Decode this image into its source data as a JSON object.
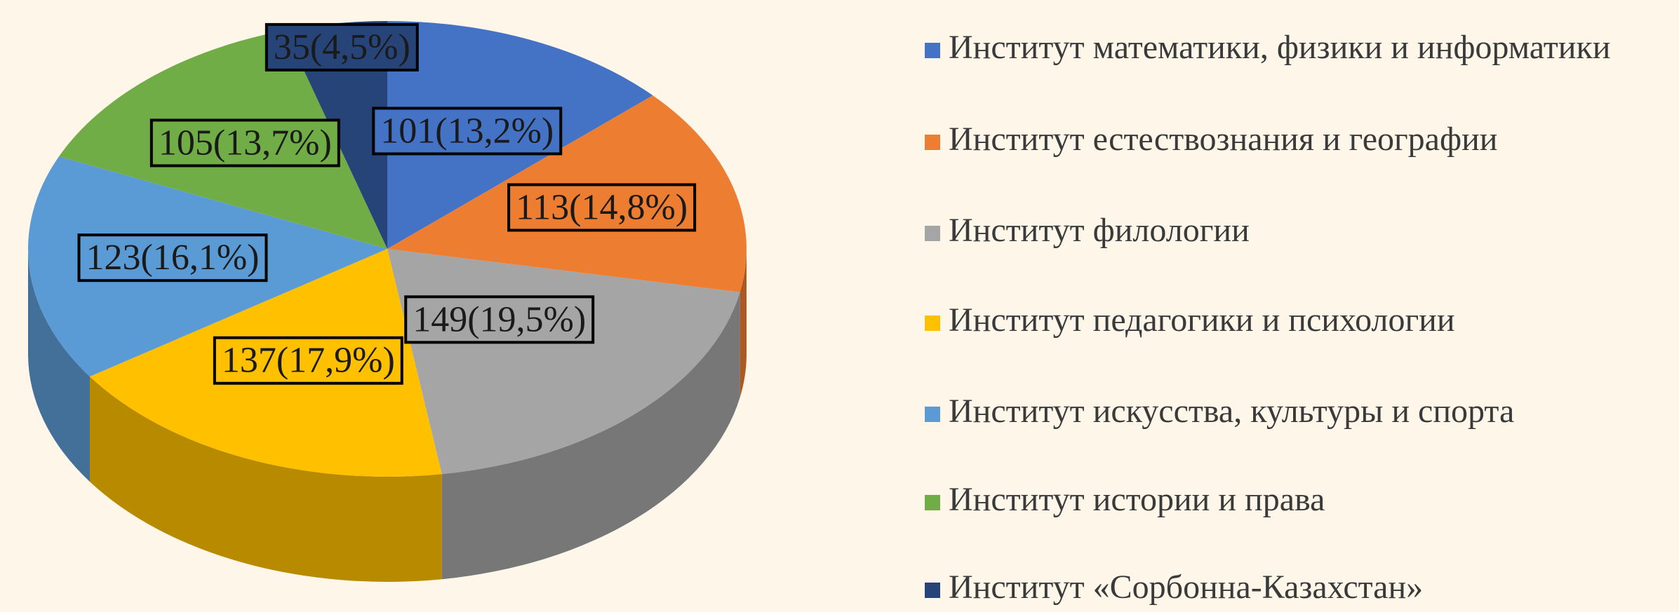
{
  "chart_data": {
    "type": "pie",
    "categories": [
      "Институт математики, физики и информатики",
      "Институт естествознания и географии",
      "Институт   филологии",
      "Институт педагогики и психологии",
      "Институт искусства, культуры и спорта",
      "Институт истории и права",
      "Институт «Сорбонна-Казахстан»"
    ],
    "values": [
      101,
      113,
      149,
      137,
      123,
      105,
      35
    ],
    "value_labels": [
      "101(13,2%)",
      "113(14,8%)",
      "149(19,5%)",
      "137(17,9%)",
      "123(16,1%)",
      "105(13,7%)",
      "35(4,5%)"
    ],
    "colors": [
      "#4472c4",
      "#ed7d31",
      "#a5a5a5",
      "#ffc000",
      "#5b9bd5",
      "#70ad47",
      "#264478"
    ],
    "legend": "right"
  }
}
